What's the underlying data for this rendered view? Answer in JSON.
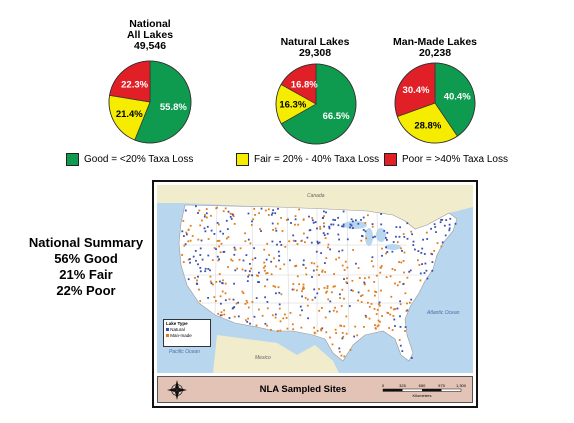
{
  "chart_data": [
    {
      "type": "pie",
      "title": [
        "National",
        "All Lakes",
        "49,546"
      ],
      "labels": [
        "Good",
        "Fair",
        "Poor"
      ],
      "values": [
        55.8,
        21.4,
        22.3
      ],
      "value_labels": [
        "55.8%",
        "21.4%",
        "22.3%"
      ],
      "colors": [
        "#0f9b4f",
        "#f5ec00",
        "#e01f26"
      ]
    },
    {
      "type": "pie",
      "title": [
        "Natural Lakes",
        "29,308"
      ],
      "labels": [
        "Good",
        "Fair",
        "Poor"
      ],
      "values": [
        66.5,
        16.3,
        16.8
      ],
      "value_labels": [
        "66.5%",
        "16.3%",
        "16.8%"
      ],
      "colors": [
        "#0f9b4f",
        "#f5ec00",
        "#e01f26"
      ]
    },
    {
      "type": "pie",
      "title": [
        "Man-Made Lakes",
        "20,238"
      ],
      "labels": [
        "Good",
        "Fair",
        "Poor"
      ],
      "values": [
        40.4,
        28.8,
        30.4
      ],
      "value_labels": [
        "40.4%",
        "28.8%",
        "30.4%"
      ],
      "colors": [
        "#0f9b4f",
        "#f5ec00",
        "#e01f26"
      ]
    }
  ],
  "legend": {
    "items": [
      {
        "label": "Good =  <20% Taxa Loss",
        "color": "#0f9b4f"
      },
      {
        "label": "Fair = 20% - 40% Taxa Loss",
        "color": "#f5ec00"
      },
      {
        "label": "Poor =  >40% Taxa Loss",
        "color": "#e01f26"
      }
    ]
  },
  "summary": {
    "title": "National Summary",
    "good": "56% Good",
    "fair": "21% Fair",
    "poor": "22% Poor"
  },
  "map": {
    "title": "NLA Sampled Sites",
    "legend_title": "Lake Type",
    "legend_natural": "Natural",
    "legend_manmade": "Man-made",
    "natural_color": "#3a4fb0",
    "manmade_color": "#e07b1a",
    "places": {
      "canada": "Canada",
      "mexico": "Mexico",
      "pacific": "Pacific Ocean",
      "atlantic": "Atlantic Ocean"
    },
    "scale_ticks": [
      "0",
      "325",
      "650",
      "975",
      "1,300"
    ],
    "scale_unit": "Kilometers",
    "compass": {
      "n": "N",
      "s": "S",
      "e": "E",
      "w": "W"
    }
  }
}
